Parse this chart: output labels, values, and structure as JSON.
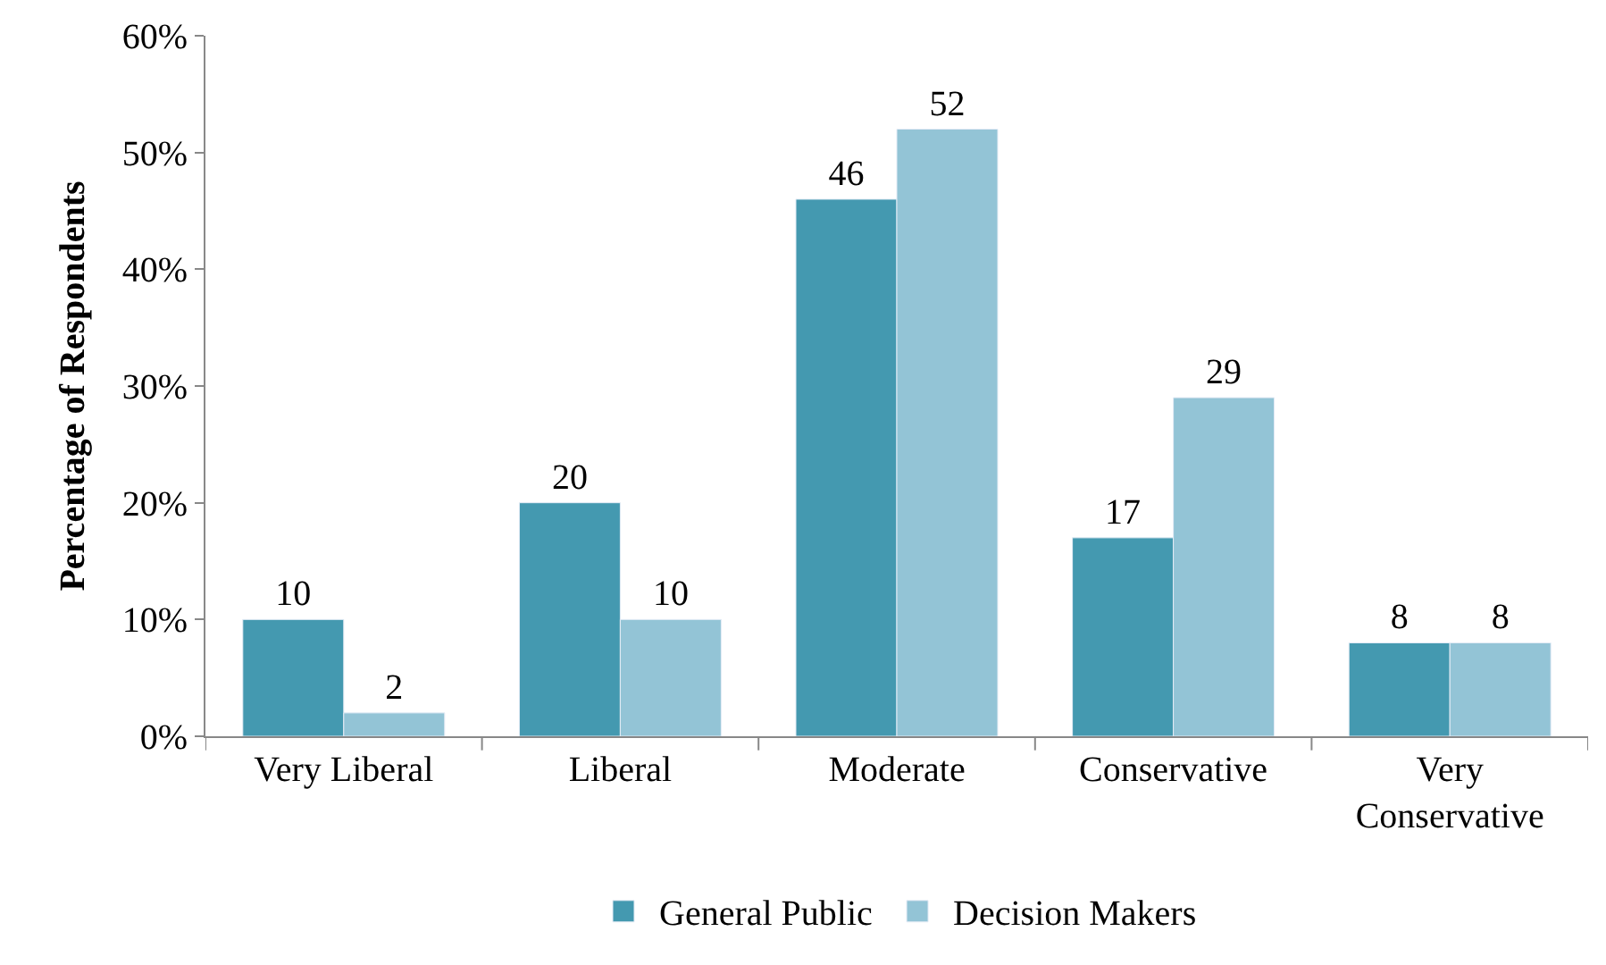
{
  "chart_data": {
    "type": "bar",
    "ylabel": "Percentage of Respondents",
    "categories": [
      "Very Liberal",
      "Liberal",
      "Moderate",
      "Conservative",
      "Very Conservative"
    ],
    "series": [
      {
        "name": "General Public",
        "color": "#4499b0",
        "values": [
          10,
          20,
          46,
          17,
          8
        ]
      },
      {
        "name": "Decision Makers",
        "color": "#93c4d6",
        "values": [
          2,
          10,
          52,
          29,
          8
        ]
      }
    ],
    "ylim": [
      0,
      60
    ],
    "yticks": [
      {
        "value": 0,
        "label": "0%"
      },
      {
        "value": 10,
        "label": "10%"
      },
      {
        "value": 20,
        "label": "20%"
      },
      {
        "value": 30,
        "label": "30%"
      },
      {
        "value": 40,
        "label": "40%"
      },
      {
        "value": 50,
        "label": "50%"
      },
      {
        "value": 60,
        "label": "60%"
      }
    ],
    "data_labels": true,
    "legend": "bottom"
  }
}
